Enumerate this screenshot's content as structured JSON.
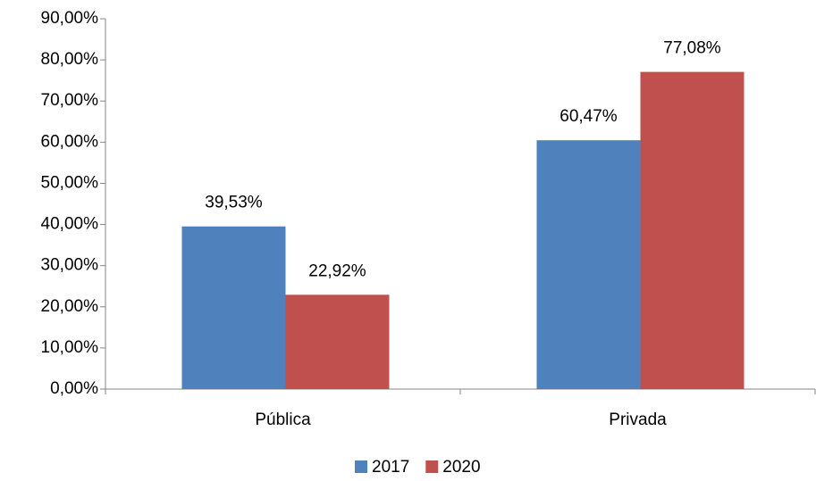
{
  "chart_data": {
    "type": "bar",
    "categories": [
      "Pública",
      "Privada"
    ],
    "series": [
      {
        "name": "2017",
        "color": "#4f81bd",
        "values": [
          39.53,
          60.47
        ],
        "value_labels": [
          "39,53%",
          "60,47%"
        ]
      },
      {
        "name": "2020",
        "color": "#c0504d",
        "values": [
          22.92,
          77.08
        ],
        "value_labels": [
          "22,92%",
          "77,08%"
        ]
      }
    ],
    "ylim": [
      0,
      90
    ],
    "yticks": [
      {
        "value": 0,
        "label": "0,00%"
      },
      {
        "value": 10,
        "label": "10,00%"
      },
      {
        "value": 20,
        "label": "20,00%"
      },
      {
        "value": 30,
        "label": "30,00%"
      },
      {
        "value": 40,
        "label": "40,00%"
      },
      {
        "value": 50,
        "label": "50,00%"
      },
      {
        "value": 60,
        "label": "60,00%"
      },
      {
        "value": 70,
        "label": "70,00%"
      },
      {
        "value": 80,
        "label": "80,00%"
      },
      {
        "value": 90,
        "label": "90,00%"
      }
    ],
    "grid": false,
    "legend": "bottom"
  }
}
